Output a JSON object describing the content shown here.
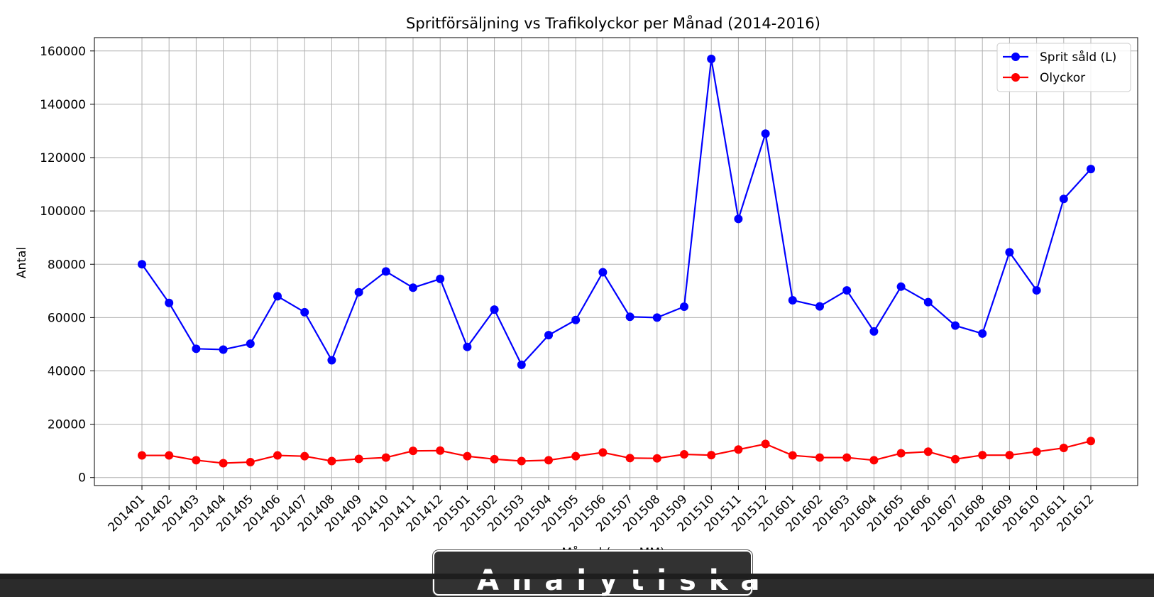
{
  "chart_data": {
    "type": "line",
    "title": "Spritförsäljning vs Trafikolyckor per Månad (2014-2016)",
    "xlabel": "Månad (yyyyMM)",
    "ylabel": "Antal",
    "categories": [
      "201401",
      "201402",
      "201403",
      "201404",
      "201405",
      "201406",
      "201407",
      "201408",
      "201409",
      "201410",
      "201411",
      "201412",
      "201501",
      "201502",
      "201503",
      "201504",
      "201505",
      "201506",
      "201507",
      "201508",
      "201509",
      "201510",
      "201511",
      "201512",
      "201601",
      "201602",
      "201603",
      "201604",
      "201605",
      "201606",
      "201607",
      "201608",
      "201609",
      "201610",
      "201611",
      "201612"
    ],
    "ylim": [
      -3000,
      165000
    ],
    "yticks": [
      0,
      20000,
      40000,
      60000,
      80000,
      100000,
      120000,
      140000,
      160000
    ],
    "grid": true,
    "legend_position": "top-right",
    "series": [
      {
        "name": "Sprit såld (L)",
        "color": "#0000ff",
        "values": [
          80000,
          65500,
          48300,
          48000,
          50200,
          68000,
          62000,
          44000,
          69500,
          77300,
          71200,
          74500,
          49000,
          63000,
          42300,
          53400,
          59100,
          77000,
          60300,
          60000,
          64100,
          157000,
          97000,
          129000,
          66500,
          64200,
          70200,
          54800,
          71600,
          65800,
          57000,
          54000,
          84500,
          70200,
          104500,
          115700
        ]
      },
      {
        "name": "Olyckor",
        "color": "#ff0000",
        "values": [
          8300,
          8300,
          6500,
          5400,
          5800,
          8300,
          8000,
          6200,
          7000,
          7500,
          10000,
          10100,
          8000,
          6900,
          6200,
          6500,
          8000,
          9400,
          7300,
          7200,
          8700,
          8400,
          10500,
          12600,
          8300,
          7500,
          7500,
          6500,
          9100,
          9700,
          6900,
          8400,
          8400,
          9700,
          11100,
          13700
        ]
      }
    ]
  },
  "overlay": {
    "text": "Analytiska"
  }
}
